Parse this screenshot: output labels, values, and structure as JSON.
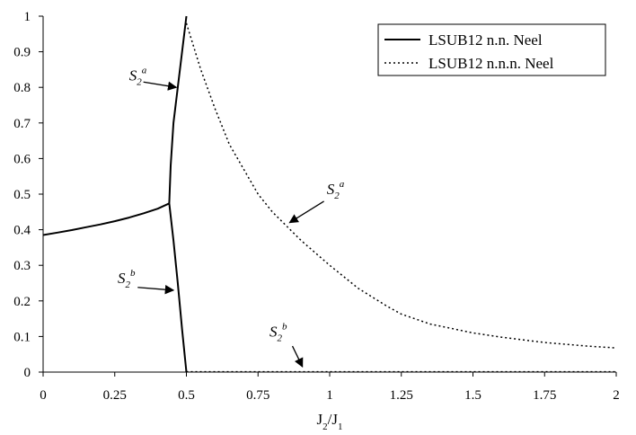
{
  "chart_data": {
    "type": "line",
    "title": "",
    "xlabel": "J2/J1",
    "xlabel_parts": [
      {
        "text": "J",
        "sub": false
      },
      {
        "text": "2",
        "sub": true
      },
      {
        "text": "/J",
        "sub": false
      },
      {
        "text": "1",
        "sub": true
      }
    ],
    "ylabel": "",
    "xlim": [
      0,
      2
    ],
    "ylim": [
      0,
      1
    ],
    "x_ticks": [
      "0",
      "0.25",
      "0.5",
      "0.75",
      "1",
      "1.25",
      "1.5",
      "1.75",
      "2"
    ],
    "y_ticks": [
      "0",
      "0.1",
      "0.2",
      "0.3",
      "0.4",
      "0.5",
      "0.6",
      "0.7",
      "0.8",
      "0.9",
      "1"
    ],
    "grid": false,
    "legend": "top-right",
    "series": [
      {
        "name": "LSUB12 n.n. Neel",
        "style": "solid",
        "color": "#000000",
        "segments": [
          [
            [
              0.0,
              0.385
            ],
            [
              0.05,
              0.392
            ],
            [
              0.1,
              0.399
            ],
            [
              0.15,
              0.407
            ],
            [
              0.2,
              0.415
            ],
            [
              0.25,
              0.424
            ],
            [
              0.3,
              0.434
            ],
            [
              0.35,
              0.446
            ],
            [
              0.4,
              0.459
            ],
            [
              0.44,
              0.474
            ]
          ],
          [
            [
              0.44,
              0.474
            ],
            [
              0.445,
              0.58
            ],
            [
              0.455,
              0.7
            ],
            [
              0.47,
              0.8
            ],
            [
              0.485,
              0.9
            ],
            [
              0.5,
              1.0
            ]
          ],
          [
            [
              0.44,
              0.474
            ],
            [
              0.455,
              0.37
            ],
            [
              0.47,
              0.25
            ],
            [
              0.485,
              0.12
            ],
            [
              0.5,
              0.0
            ]
          ]
        ]
      },
      {
        "name": "LSUB12 n.n.n. Neel",
        "style": "dotted",
        "color": "#000000",
        "segments": [
          [
            [
              0.5,
              0.98
            ],
            [
              0.55,
              0.85
            ],
            [
              0.6,
              0.74
            ],
            [
              0.65,
              0.64
            ],
            [
              0.7,
              0.57
            ],
            [
              0.75,
              0.5
            ],
            [
              0.8,
              0.45
            ],
            [
              0.85,
              0.41
            ],
            [
              0.9,
              0.37
            ],
            [
              1.0,
              0.3
            ],
            [
              1.1,
              0.235
            ],
            [
              1.2,
              0.185
            ],
            [
              1.25,
              0.163
            ],
            [
              1.35,
              0.135
            ],
            [
              1.5,
              0.11
            ],
            [
              1.6,
              0.098
            ],
            [
              1.75,
              0.083
            ],
            [
              1.9,
              0.073
            ],
            [
              2.0,
              0.068
            ]
          ],
          [
            [
              0.5,
              0.001
            ],
            [
              1.0,
              0.001
            ],
            [
              1.5,
              0.001
            ],
            [
              2.0,
              0.001
            ]
          ]
        ]
      }
    ],
    "annotations": [
      {
        "id": "s2a-left",
        "main": "S",
        "sub": "2",
        "sup": "a",
        "text_at": [
          0.3,
          0.82
        ],
        "arrow_from": [
          0.35,
          0.815
        ],
        "arrow_to": [
          0.465,
          0.8
        ]
      },
      {
        "id": "s2b-left",
        "main": "S",
        "sub": "2",
        "sup": "b",
        "text_at": [
          0.26,
          0.25
        ],
        "arrow_from": [
          0.33,
          0.238
        ],
        "arrow_to": [
          0.455,
          0.23
        ]
      },
      {
        "id": "s2a-right",
        "main": "S",
        "sub": "2",
        "sup": "a",
        "text_at": [
          0.99,
          0.5
        ],
        "arrow_from": [
          0.98,
          0.48
        ],
        "arrow_to": [
          0.86,
          0.42
        ]
      },
      {
        "id": "s2b-right",
        "main": "S",
        "sub": "2",
        "sup": "b",
        "text_at": [
          0.79,
          0.1
        ],
        "arrow_from": [
          0.87,
          0.073
        ],
        "arrow_to": [
          0.905,
          0.015
        ]
      }
    ]
  }
}
